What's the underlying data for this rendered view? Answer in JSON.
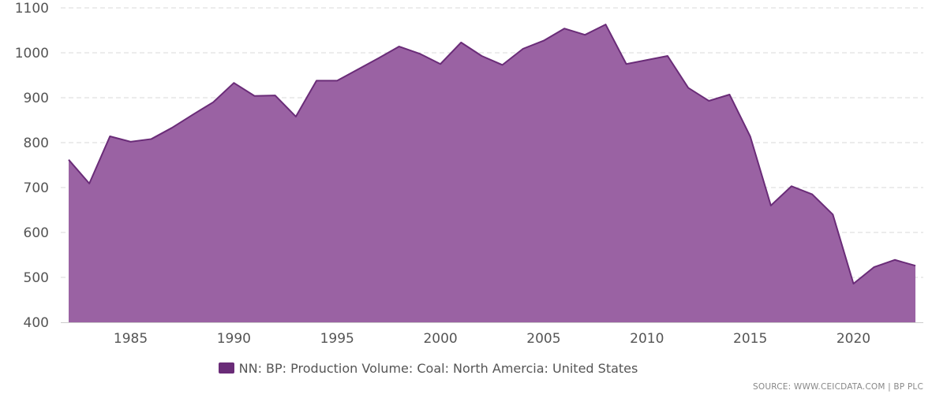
{
  "colors": {
    "area_fill": "#9a62a3",
    "area_line": "#6a2c78",
    "legend_swatch": "#6a2c78",
    "grid": "#d8d8d8",
    "axis": "#cccccc"
  },
  "legend": {
    "label": "NN: BP: Production Volume: Coal: North Amercia: United States"
  },
  "source": {
    "text": "SOURCE: WWW.CEICDATA.COM | BP PLC"
  },
  "chart_data": {
    "type": "area",
    "title": "",
    "xlabel": "",
    "ylabel": "",
    "ylim": [
      400,
      1100
    ],
    "xlim": [
      1982,
      2023
    ],
    "y_ticks": [
      400,
      500,
      600,
      700,
      800,
      900,
      1000,
      1100
    ],
    "x_ticks": [
      1985,
      1990,
      1995,
      2000,
      2005,
      2010,
      2015,
      2020
    ],
    "grid": true,
    "legend_position": "bottom",
    "x": [
      1982,
      1983,
      1984,
      1985,
      1986,
      1987,
      1988,
      1989,
      1990,
      1991,
      1992,
      1993,
      1994,
      1995,
      1996,
      1997,
      1998,
      1999,
      2000,
      2001,
      2002,
      2003,
      2004,
      2005,
      2006,
      2007,
      2008,
      2009,
      2010,
      2011,
      2012,
      2013,
      2014,
      2015,
      2016,
      2017,
      2018,
      2019,
      2020,
      2021,
      2022,
      2023
    ],
    "series": [
      {
        "name": "NN: BP: Production Volume: Coal: North Amercia: United States",
        "values": [
          762,
          709,
          814,
          802,
          808,
          833,
          862,
          890,
          933,
          904,
          905,
          858,
          938,
          938,
          963,
          988,
          1014,
          998,
          975,
          1023,
          993,
          973,
          1009,
          1027,
          1054,
          1040,
          1063,
          975,
          984,
          993,
          922,
          893,
          907,
          814,
          660,
          703,
          685,
          640,
          486,
          523,
          539,
          526
        ]
      }
    ]
  }
}
